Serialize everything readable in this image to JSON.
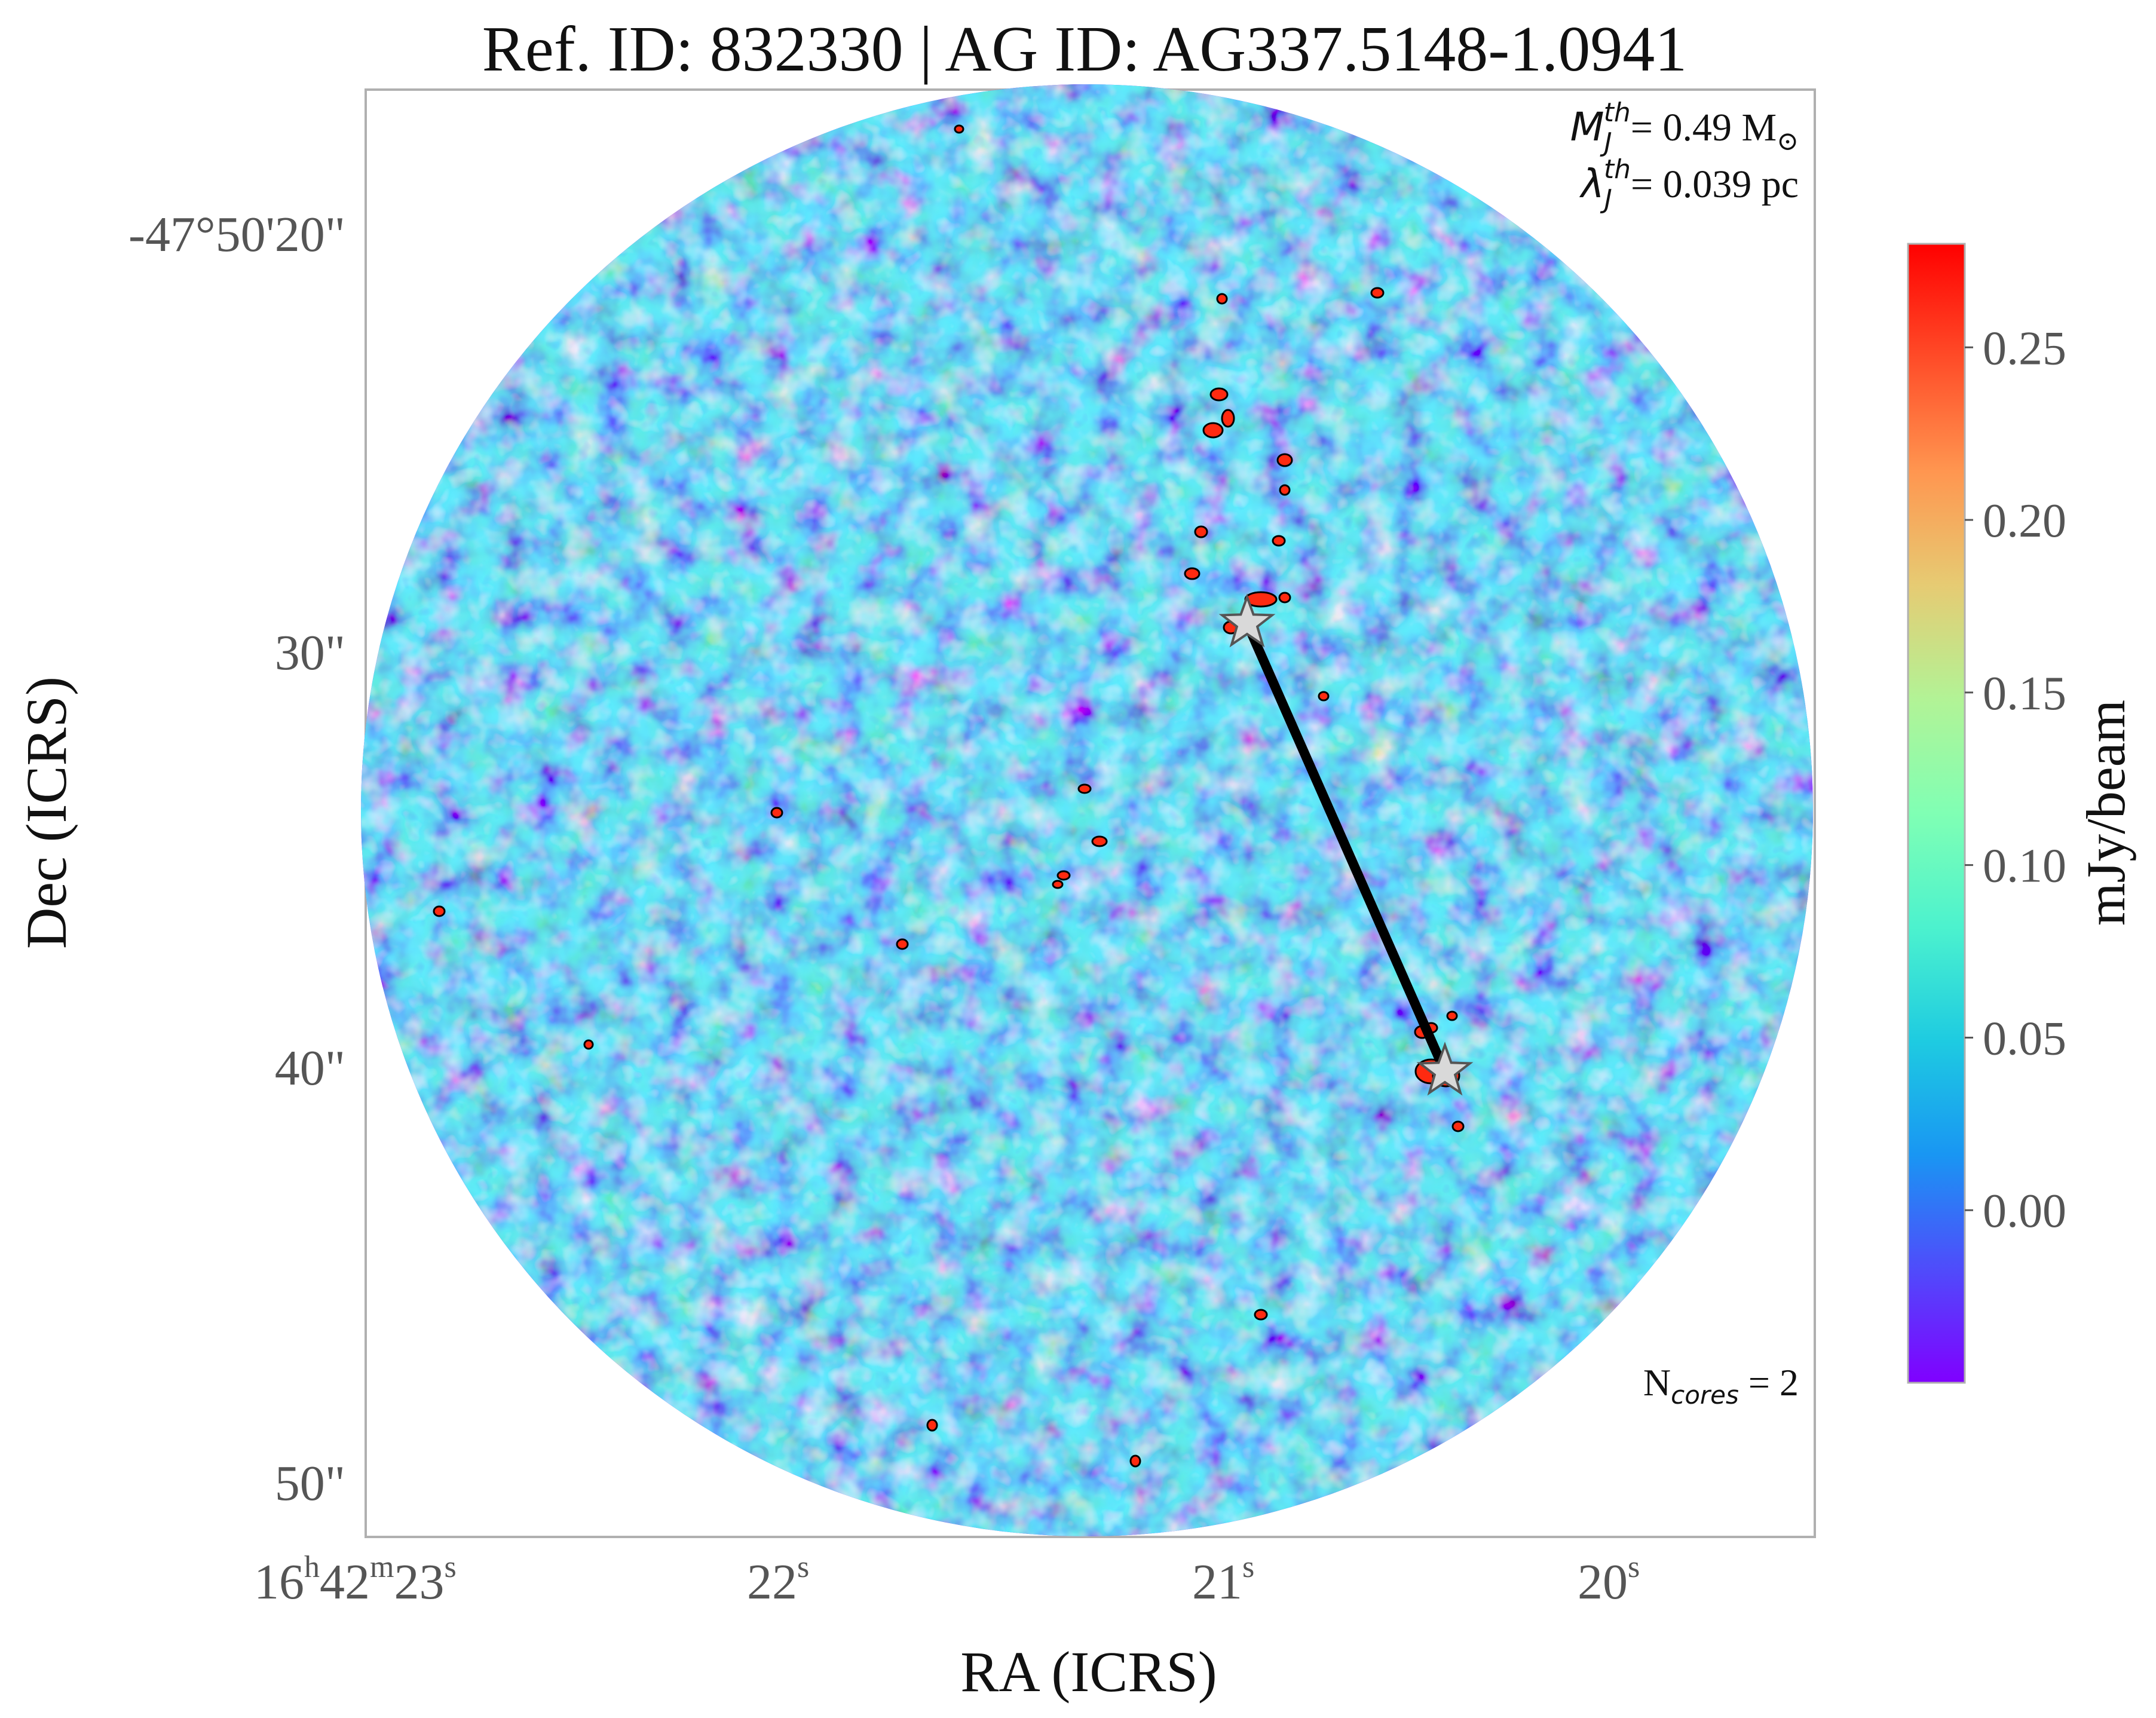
{
  "title": "Ref. ID: 832330 | AG ID: AG337.5148-1.0941",
  "xlabel": "RA (ICRS)",
  "ylabel": "Dec (ICRS)",
  "x_ticks": [
    {
      "main": "16",
      "sup1": "h",
      "mid": "42",
      "sup2": "m",
      "end": "23",
      "sup3": "s"
    },
    {
      "main": "22",
      "sup": "s"
    },
    {
      "main": "21",
      "sup": "s"
    },
    {
      "main": "20",
      "sup": "s"
    }
  ],
  "y_ticks": [
    "-47°50'20\"",
    "30\"",
    "40\"",
    "50\""
  ],
  "annotations": {
    "mj_symbol": "M",
    "mj_sub": "J",
    "mj_sup": "th",
    "mj_value": "= 0.49 M",
    "mj_unit_symbol": "⊙",
    "lj_symbol": "λ",
    "lj_sub": "J",
    "lj_sup": "th",
    "lj_value": "= 0.039 pc",
    "ncores_symbol": "N",
    "ncores_sub": "cores",
    "ncores_value": " = 2"
  },
  "colorbar": {
    "label": "mJy/beam",
    "ticks": [
      "0.25",
      "0.20",
      "0.15",
      "0.10",
      "0.05",
      "0.00"
    ],
    "range": [
      -0.05,
      0.28
    ],
    "colormap": [
      "#8000ff",
      "#4f4cfb",
      "#1996f3",
      "#1ecbe1",
      "#4cf2ce",
      "#80ffb4",
      "#b2f396",
      "#e6cb73",
      "#ff9650",
      "#ff4c28",
      "#ff0000"
    ]
  },
  "map": {
    "cores": [
      {
        "ra_s": 20.88,
        "dec_offset_arcsec": 30.4
      },
      {
        "ra_s": 20.4,
        "dec_offset_arcsec": 40.1
      }
    ],
    "marker": "white-star",
    "connector_color": "#000000"
  },
  "colors": {
    "frame": "#b0b0b0",
    "tick_label": "#555555",
    "background_cmap_low": "#8000ff",
    "star_fill": "#d9d9d9",
    "line": "#000000"
  }
}
